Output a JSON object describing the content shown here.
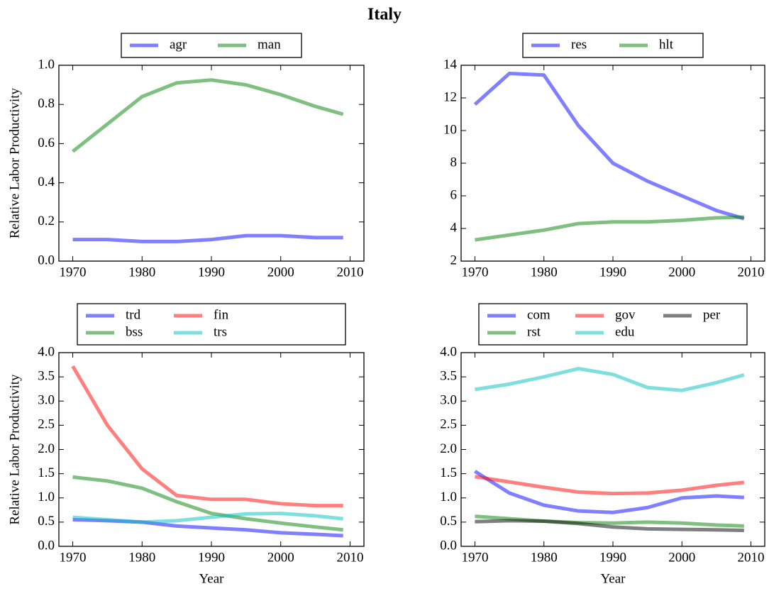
{
  "title": "Italy",
  "chart_data": [
    {
      "type": "line",
      "ylabel": "Relative Labor Productivity",
      "legend_ncol": 2,
      "x": [
        1970,
        1975,
        1980,
        1985,
        1990,
        1995,
        2000,
        2005,
        2009
      ],
      "series": [
        {
          "name": "agr",
          "color": "#0000ff",
          "values": [
            0.11,
            0.11,
            0.1,
            0.1,
            0.11,
            0.13,
            0.13,
            0.12,
            0.12
          ]
        },
        {
          "name": "man",
          "color": "#008000",
          "values": [
            0.56,
            0.7,
            0.84,
            0.91,
            0.925,
            0.9,
            0.85,
            0.79,
            0.75
          ]
        }
      ],
      "xlim": [
        1968,
        2012
      ],
      "xticks": [
        1970,
        1980,
        1990,
        2000,
        2010
      ],
      "ylim": [
        0,
        1
      ],
      "yticks": [
        {
          "value": 0,
          "label": "0.0"
        },
        0.2,
        0.4,
        0.6,
        0.8,
        {
          "value": 1,
          "label": "1.0"
        }
      ]
    },
    {
      "type": "line",
      "legend_ncol": 2,
      "x": [
        1970,
        1975,
        1980,
        1985,
        1990,
        1995,
        2000,
        2005,
        2009
      ],
      "series": [
        {
          "name": "res",
          "color": "#0000ff",
          "values": [
            11.6,
            13.5,
            13.4,
            10.3,
            8.0,
            6.9,
            6.0,
            5.1,
            4.6
          ]
        },
        {
          "name": "hlt",
          "color": "#008000",
          "values": [
            3.3,
            3.6,
            3.9,
            4.3,
            4.4,
            4.4,
            4.5,
            4.65,
            4.7
          ]
        }
      ],
      "xlim": [
        1968,
        2012
      ],
      "xticks": [
        1970,
        1980,
        1990,
        2000,
        2010
      ],
      "ylim": [
        2,
        14
      ],
      "yticks": [
        2,
        4,
        6,
        8,
        10,
        12,
        14
      ]
    },
    {
      "type": "line",
      "xlabel": "Year",
      "ylabel": "Relative Labor Productivity",
      "legend_ncol": 3,
      "x": [
        1970,
        1975,
        1980,
        1985,
        1990,
        1995,
        2000,
        2005,
        2009
      ],
      "series": [
        {
          "name": "trd",
          "color": "#0000ff",
          "values": [
            0.55,
            0.53,
            0.5,
            0.42,
            0.38,
            0.34,
            0.28,
            0.25,
            0.22
          ]
        },
        {
          "name": "bss",
          "color": "#008000",
          "values": [
            1.43,
            1.35,
            1.2,
            0.92,
            0.68,
            0.57,
            0.48,
            0.4,
            0.34
          ]
        },
        {
          "name": "fin",
          "color": "#ff0000",
          "values": [
            3.72,
            2.5,
            1.6,
            1.05,
            0.97,
            0.97,
            0.88,
            0.84,
            0.84
          ]
        },
        {
          "name": "trs",
          "color": "#00bfbf",
          "values": [
            0.6,
            0.55,
            0.5,
            0.53,
            0.6,
            0.67,
            0.68,
            0.63,
            0.57
          ]
        }
      ],
      "xlim": [
        1968,
        2012
      ],
      "xticks": [
        1970,
        1980,
        1990,
        2000,
        2010
      ],
      "ylim": [
        0,
        4
      ],
      "yticks": [
        {
          "value": 0,
          "label": "0.0"
        },
        0.5,
        {
          "value": 1,
          "label": "1.0"
        },
        1.5,
        {
          "value": 2,
          "label": "2.0"
        },
        2.5,
        {
          "value": 3,
          "label": "3.0"
        },
        3.5,
        {
          "value": 4,
          "label": "4.0"
        }
      ]
    },
    {
      "type": "line",
      "xlabel": "Year",
      "legend_ncol": 3,
      "x": [
        1970,
        1975,
        1980,
        1985,
        1990,
        1995,
        2000,
        2005,
        2009
      ],
      "series": [
        {
          "name": "com",
          "color": "#0000ff",
          "values": [
            1.55,
            1.1,
            0.85,
            0.73,
            0.7,
            0.8,
            1.0,
            1.04,
            1.01
          ]
        },
        {
          "name": "rst",
          "color": "#008000",
          "values": [
            0.62,
            0.57,
            0.52,
            0.49,
            0.48,
            0.5,
            0.48,
            0.44,
            0.42
          ]
        },
        {
          "name": "gov",
          "color": "#ff0000",
          "values": [
            1.44,
            1.33,
            1.22,
            1.12,
            1.09,
            1.1,
            1.16,
            1.26,
            1.32
          ]
        },
        {
          "name": "edu",
          "color": "#00bfbf",
          "values": [
            3.24,
            3.35,
            3.5,
            3.67,
            3.55,
            3.28,
            3.22,
            3.38,
            3.54
          ]
        },
        {
          "name": "per",
          "color": "#000000",
          "values": [
            0.51,
            0.53,
            0.52,
            0.47,
            0.4,
            0.36,
            0.35,
            0.34,
            0.33
          ]
        }
      ],
      "xlim": [
        1968,
        2012
      ],
      "xticks": [
        1970,
        1980,
        1990,
        2000,
        2010
      ],
      "ylim": [
        0,
        4
      ],
      "yticks": [
        {
          "value": 0,
          "label": "0.0"
        },
        0.5,
        {
          "value": 1,
          "label": "1.0"
        },
        1.5,
        {
          "value": 2,
          "label": "2.0"
        },
        2.5,
        {
          "value": 3,
          "label": "3.0"
        },
        3.5,
        {
          "value": 4,
          "label": "4.0"
        }
      ]
    }
  ]
}
